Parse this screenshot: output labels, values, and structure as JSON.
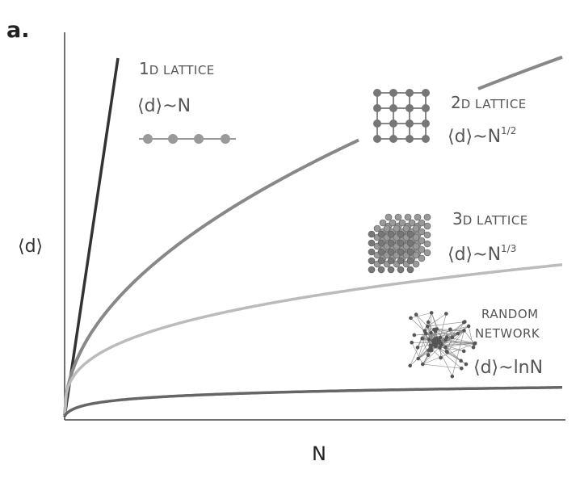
{
  "panel_label": "a.",
  "axes": {
    "y_label": "⟨d⟩",
    "x_label": "N"
  },
  "annotations": [
    {
      "number": "1",
      "name": "D LATTICE",
      "formula": "⟨d⟩~N"
    },
    {
      "number": "2",
      "name": "D LATTICE",
      "formula": "⟨d⟩~N",
      "exponent": "1/2"
    },
    {
      "number": "3",
      "name": "D LATTICE",
      "formula": "⟨d⟩~N",
      "exponent": "1/3"
    },
    {
      "name_lines": [
        "RANDOM",
        "NETWORK"
      ],
      "formula": "⟨d⟩~lnN"
    }
  ]
}
